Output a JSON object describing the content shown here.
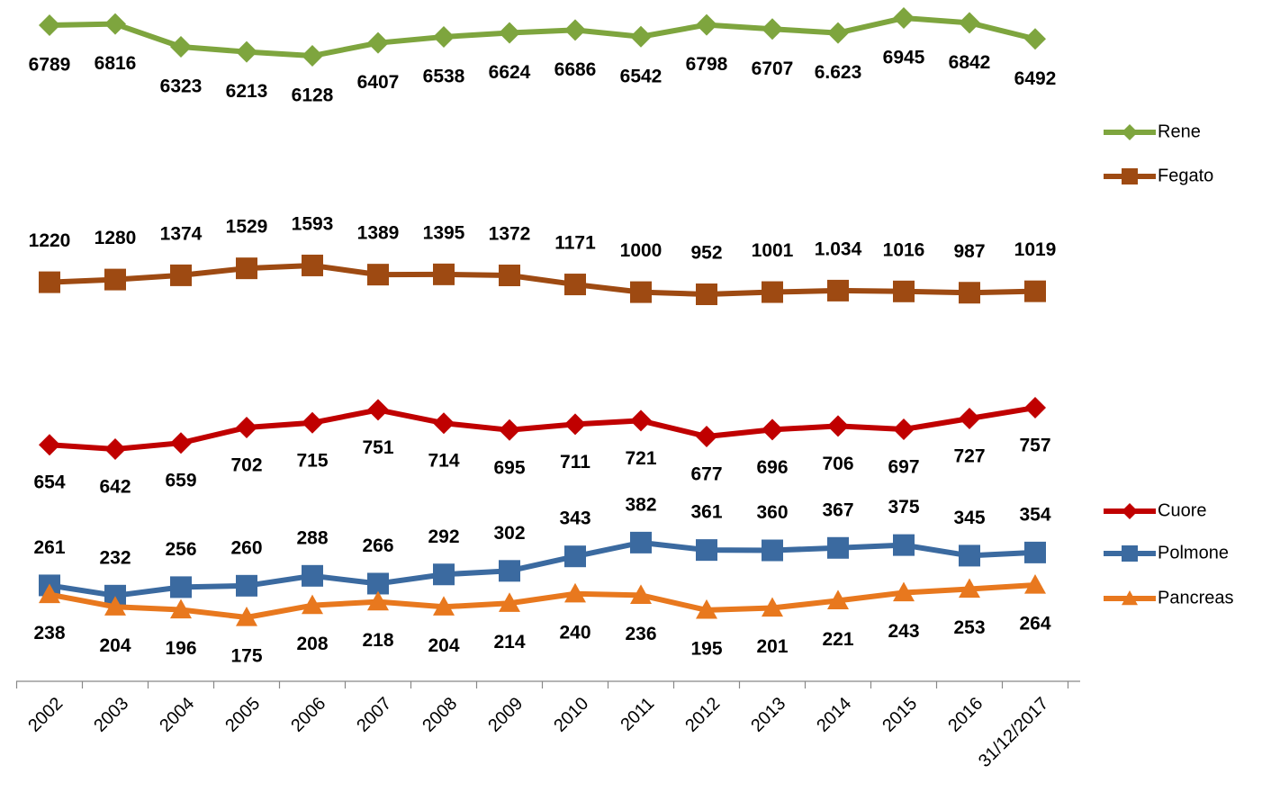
{
  "chart_data": {
    "type": "line",
    "categories": [
      "2002",
      "2003",
      "2004",
      "2005",
      "2006",
      "2007",
      "2008",
      "2009",
      "2010",
      "2011",
      "2012",
      "2013",
      "2014",
      "2015",
      "2016",
      "31/12/2017"
    ],
    "series": [
      {
        "name": "Rene",
        "color": "#7ea53e",
        "marker": "diamond",
        "values": [
          6789,
          6816,
          6323,
          6213,
          6128,
          6407,
          6538,
          6624,
          6686,
          6542,
          6798,
          6707,
          6623,
          6945,
          6842,
          6492
        ],
        "value_labels": [
          "6789",
          "6816",
          "6323",
          "6213",
          "6128",
          "6407",
          "6538",
          "6624",
          "6686",
          "6542",
          "6798",
          "6707",
          "6.623",
          "6945",
          "6842",
          "6492"
        ]
      },
      {
        "name": "Fegato",
        "color": "#9e4a12",
        "marker": "square",
        "values": [
          1220,
          1280,
          1374,
          1529,
          1593,
          1389,
          1395,
          1372,
          1171,
          1000,
          952,
          1001,
          1034,
          1016,
          987,
          1019
        ],
        "value_labels": [
          "1220",
          "1280",
          "1374",
          "1529",
          "1593",
          "1389",
          "1395",
          "1372",
          "1171",
          "1000",
          "952",
          "1001",
          "1.034",
          "1016",
          "987",
          "1019"
        ]
      },
      {
        "name": "Cuore",
        "color": "#c00000",
        "marker": "diamond",
        "values": [
          654,
          642,
          659,
          702,
          715,
          751,
          714,
          695,
          711,
          721,
          677,
          696,
          706,
          697,
          727,
          757
        ]
      },
      {
        "name": "Polmone",
        "color": "#3b6aa0",
        "marker": "square",
        "values": [
          261,
          232,
          256,
          260,
          288,
          266,
          292,
          302,
          343,
          382,
          361,
          360,
          367,
          375,
          345,
          354
        ]
      },
      {
        "name": "Pancreas",
        "color": "#e8781e",
        "marker": "triangle",
        "values": [
          238,
          204,
          196,
          175,
          208,
          218,
          204,
          214,
          240,
          236,
          195,
          201,
          221,
          243,
          253,
          264
        ]
      }
    ]
  }
}
